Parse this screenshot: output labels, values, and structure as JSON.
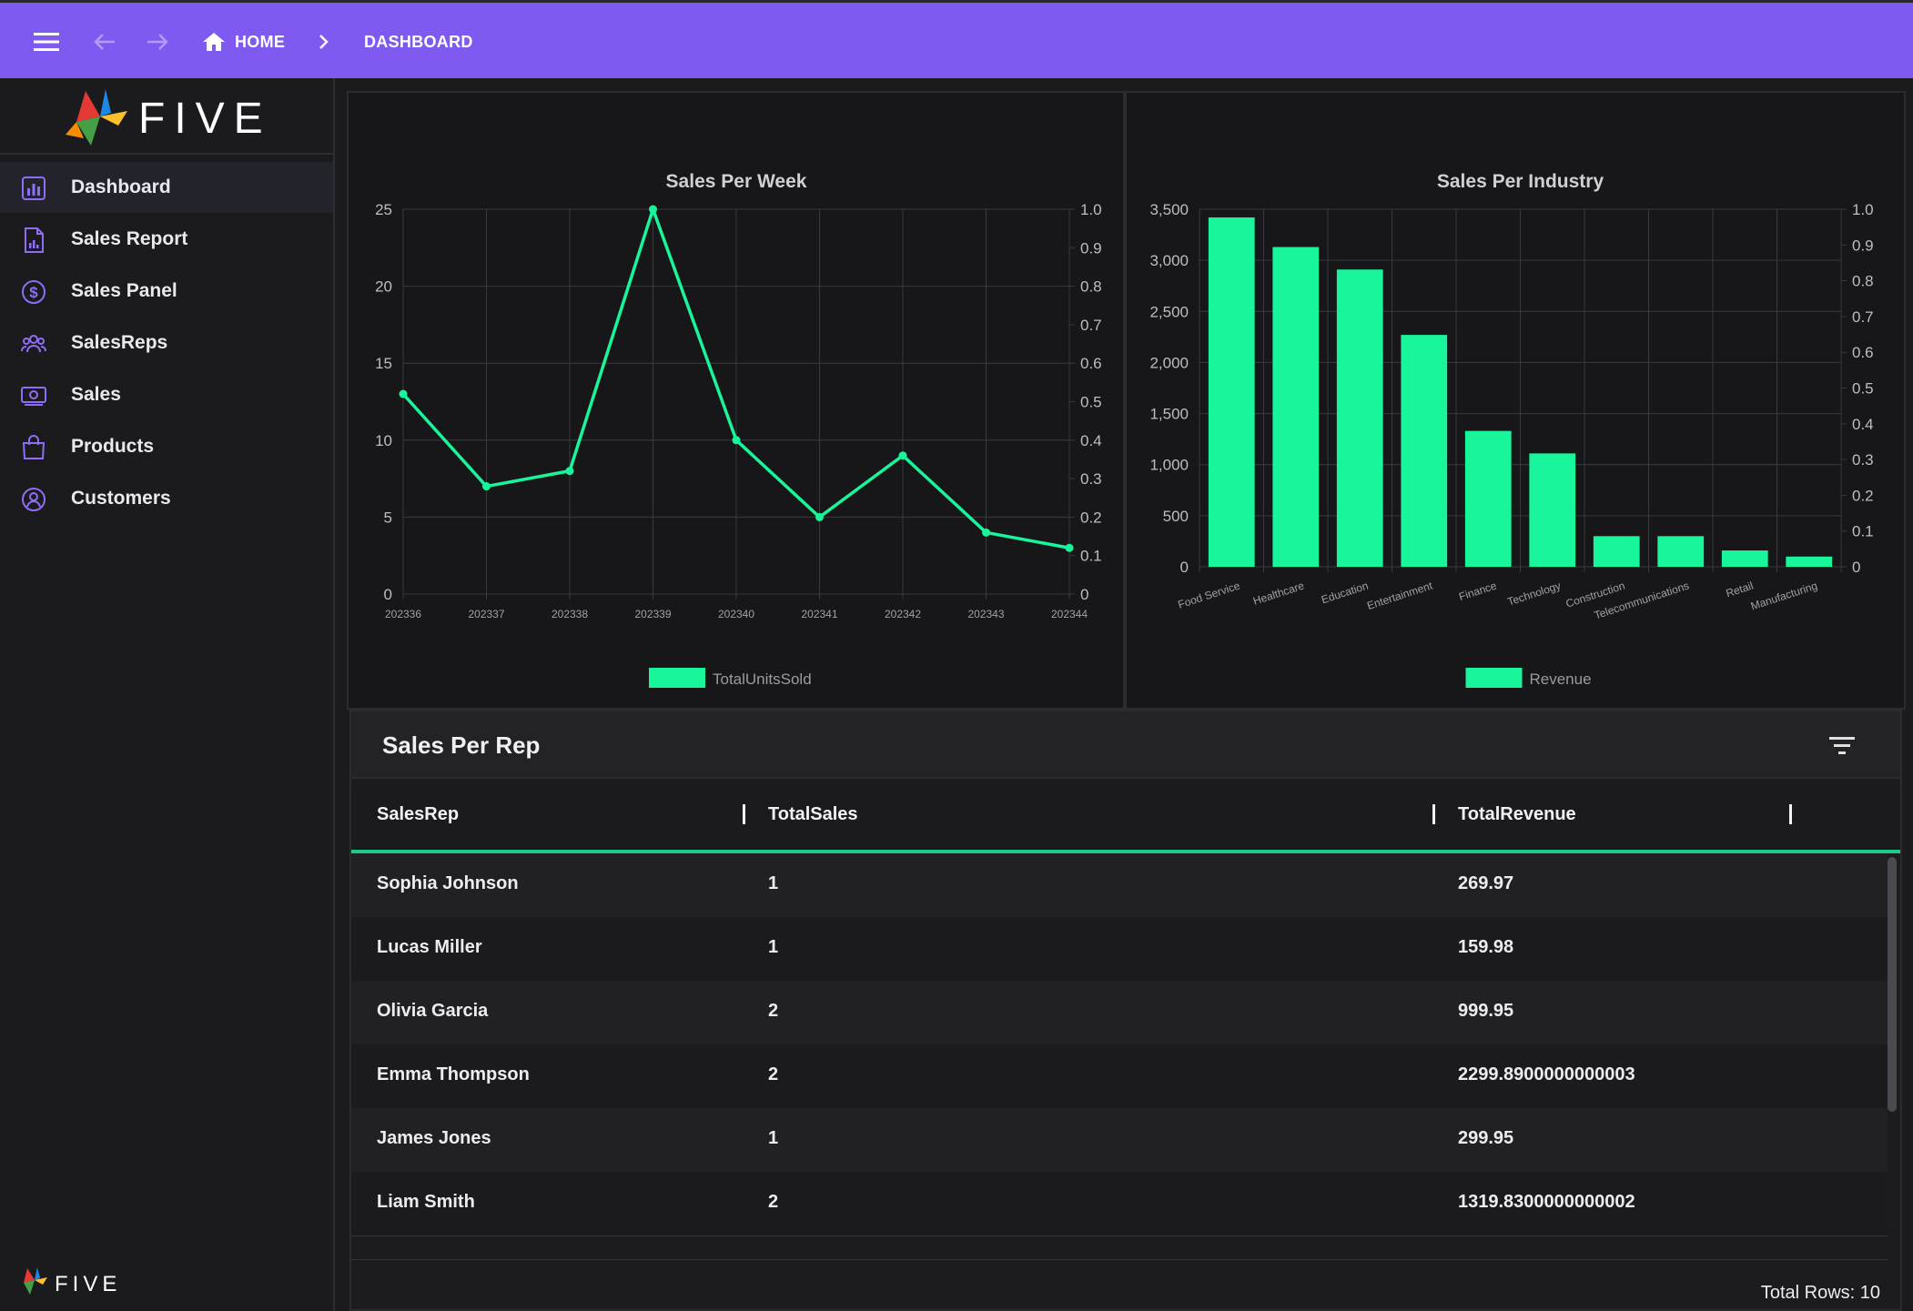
{
  "topbar": {
    "breadcrumbs": [
      "HOME",
      "DASHBOARD"
    ],
    "bg_color": "#7f5af0"
  },
  "brand": {
    "name": "FIVE"
  },
  "sidebar": {
    "items": [
      {
        "label": "Dashboard",
        "icon": "bar-chart-icon",
        "active": true
      },
      {
        "label": "Sales Report",
        "icon": "report-file-icon",
        "active": false
      },
      {
        "label": "Sales Panel",
        "icon": "dollar-circle-icon",
        "active": false
      },
      {
        "label": "SalesReps",
        "icon": "people-group-icon",
        "active": false
      },
      {
        "label": "Sales",
        "icon": "cash-icon",
        "active": false
      },
      {
        "label": "Products",
        "icon": "shopping-bag-icon",
        "active": false
      },
      {
        "label": "Customers",
        "icon": "user-circle-icon",
        "active": false
      }
    ]
  },
  "chart_data": [
    {
      "type": "line",
      "title": "Sales Per Week",
      "x": [
        "202336",
        "202337",
        "202338",
        "202339",
        "202340",
        "202341",
        "202342",
        "202343",
        "202344"
      ],
      "series": [
        {
          "name": "TotalUnitsSold",
          "values": [
            13,
            7,
            8,
            25,
            10,
            5,
            9,
            4,
            3
          ]
        }
      ],
      "ylim": [
        0,
        25
      ],
      "yticks": [
        0,
        5,
        10,
        15,
        20,
        25
      ],
      "y2lim": [
        0,
        1
      ],
      "y2ticks": [
        "0",
        "0.1",
        "0.2",
        "0.3",
        "0.4",
        "0.5",
        "0.6",
        "0.7",
        "0.8",
        "0.9",
        "1.0"
      ],
      "color": "#19f59b",
      "grid": true,
      "legend": "bottom"
    },
    {
      "type": "bar",
      "title": "Sales Per Industry",
      "categories": [
        "Food Service",
        "Healthcare",
        "Education",
        "Entertainment",
        "Finance",
        "Technology",
        "Construction",
        "Telecommunications",
        "Retail",
        "Manufacturing"
      ],
      "series": [
        {
          "name": "Revenue",
          "values": [
            3420,
            3130,
            2910,
            2270,
            1330,
            1110,
            300,
            300,
            160,
            100
          ]
        }
      ],
      "ylim": [
        0,
        3500
      ],
      "yticks": [
        "0",
        "500",
        "1,000",
        "1,500",
        "2,000",
        "2,500",
        "3,000",
        "3,500"
      ],
      "y2lim": [
        0,
        1
      ],
      "y2ticks": [
        "0",
        "0.1",
        "0.2",
        "0.3",
        "0.4",
        "0.5",
        "0.6",
        "0.7",
        "0.8",
        "0.9",
        "1.0"
      ],
      "color": "#19f59b",
      "grid": true,
      "legend": "bottom"
    }
  ],
  "table": {
    "title": "Sales Per Rep",
    "columns": [
      "SalesRep",
      "TotalSales",
      "TotalRevenue"
    ],
    "rows": [
      [
        "Sophia Johnson",
        "1",
        "269.97"
      ],
      [
        "Lucas Miller",
        "1",
        "159.98"
      ],
      [
        "Olivia Garcia",
        "2",
        "999.95"
      ],
      [
        "Emma Thompson",
        "2",
        "2299.8900000000003"
      ],
      [
        "James Jones",
        "1",
        "299.95"
      ],
      [
        "Liam Smith",
        "2",
        "1319.8300000000002"
      ]
    ],
    "total_rows": "Total Rows: 10",
    "accent_color": "#1ec98a"
  }
}
